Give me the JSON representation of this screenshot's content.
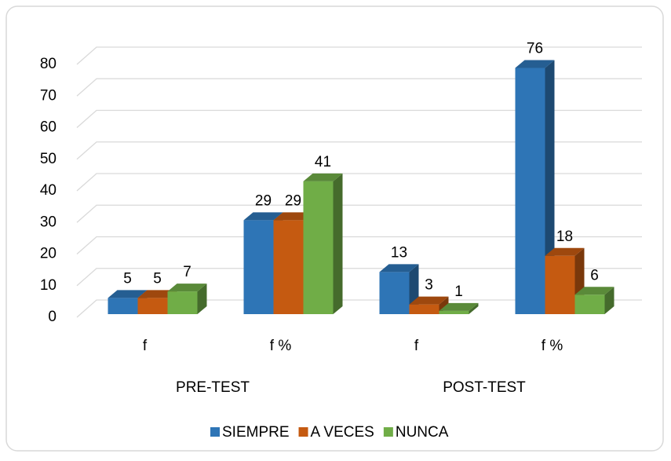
{
  "chart_data": {
    "type": "bar3d",
    "categories": [
      "f",
      "f %",
      "f",
      "f %"
    ],
    "group_labels": [
      "PRE-TEST",
      "POST-TEST"
    ],
    "series": [
      {
        "name": "SIEMPRE",
        "color": "#2e75b6",
        "values": [
          5,
          29,
          13,
          76
        ]
      },
      {
        "name": "A VECES",
        "color": "#c55a11",
        "values": [
          5,
          29,
          3,
          18
        ]
      },
      {
        "name": "NUNCA",
        "color": "#70ad47",
        "values": [
          7,
          41,
          1,
          6
        ]
      }
    ],
    "ylim": [
      0,
      80
    ],
    "yticks": [
      0,
      10,
      20,
      30,
      40,
      50,
      60,
      70,
      80
    ],
    "grid": true,
    "legend": "bottom"
  }
}
